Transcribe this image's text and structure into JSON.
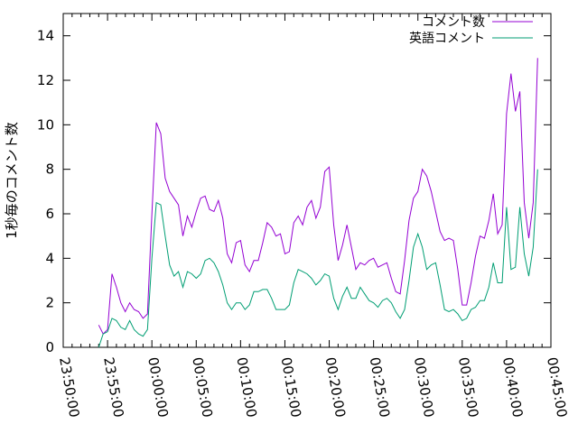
{
  "chart_data": {
    "type": "line",
    "title": "",
    "xlabel": "",
    "ylabel": "1秒毎のコメント数",
    "ylim": [
      0,
      15
    ],
    "xlim": [
      "23:50:00",
      "00:45:00"
    ],
    "yticks": [
      "0",
      "2",
      "4",
      "6",
      "8",
      "10",
      "12",
      "14"
    ],
    "xticks": [
      "23:50:00",
      "23:55:00",
      "00:00:00",
      "00:05:00",
      "00:10:00",
      "00:15:00",
      "00:20:00",
      "00:25:00",
      "00:30:00",
      "00:35:00",
      "00:40:00",
      "00:45:00"
    ],
    "grid": false,
    "legend_position": "top-right",
    "series": [
      {
        "name": "コメント数",
        "color": "#9400d3",
        "points": [
          [
            "23:54:00",
            1.0
          ],
          [
            "23:54:30",
            0.6
          ],
          [
            "23:55:00",
            0.8
          ],
          [
            "23:55:30",
            3.3
          ],
          [
            "23:56:00",
            2.7
          ],
          [
            "23:56:30",
            2.0
          ],
          [
            "23:57:00",
            1.6
          ],
          [
            "23:57:30",
            2.0
          ],
          [
            "23:58:00",
            1.7
          ],
          [
            "23:58:30",
            1.6
          ],
          [
            "23:59:00",
            1.3
          ],
          [
            "23:59:30",
            1.5
          ],
          [
            "00:00:00",
            6.0
          ],
          [
            "00:00:30",
            10.1
          ],
          [
            "00:01:00",
            9.6
          ],
          [
            "00:01:30",
            7.6
          ],
          [
            "00:02:00",
            7.0
          ],
          [
            "00:02:30",
            6.7
          ],
          [
            "00:03:00",
            6.4
          ],
          [
            "00:03:30",
            5.0
          ],
          [
            "00:04:00",
            5.9
          ],
          [
            "00:04:30",
            5.4
          ],
          [
            "00:05:00",
            6.1
          ],
          [
            "00:05:30",
            6.7
          ],
          [
            "00:06:00",
            6.8
          ],
          [
            "00:06:30",
            6.2
          ],
          [
            "00:07:00",
            6.1
          ],
          [
            "00:07:30",
            6.6
          ],
          [
            "00:08:00",
            5.8
          ],
          [
            "00:08:30",
            4.2
          ],
          [
            "00:09:00",
            3.8
          ],
          [
            "00:09:30",
            4.7
          ],
          [
            "00:10:00",
            4.8
          ],
          [
            "00:10:30",
            3.7
          ],
          [
            "00:11:00",
            3.4
          ],
          [
            "00:11:30",
            3.9
          ],
          [
            "00:12:00",
            3.9
          ],
          [
            "00:12:30",
            4.7
          ],
          [
            "00:13:00",
            5.6
          ],
          [
            "00:13:30",
            5.4
          ],
          [
            "00:14:00",
            5.0
          ],
          [
            "00:14:30",
            5.1
          ],
          [
            "00:15:00",
            4.2
          ],
          [
            "00:15:30",
            4.3
          ],
          [
            "00:16:00",
            5.6
          ],
          [
            "00:16:30",
            5.9
          ],
          [
            "00:17:00",
            5.5
          ],
          [
            "00:17:30",
            6.3
          ],
          [
            "00:18:00",
            6.6
          ],
          [
            "00:18:30",
            5.8
          ],
          [
            "00:19:00",
            6.3
          ],
          [
            "00:19:30",
            7.9
          ],
          [
            "00:20:00",
            8.1
          ],
          [
            "00:20:30",
            5.5
          ],
          [
            "00:21:00",
            3.9
          ],
          [
            "00:21:30",
            4.6
          ],
          [
            "00:22:00",
            5.5
          ],
          [
            "00:22:30",
            4.5
          ],
          [
            "00:23:00",
            3.5
          ],
          [
            "00:23:30",
            3.8
          ],
          [
            "00:24:00",
            3.7
          ],
          [
            "00:24:30",
            3.9
          ],
          [
            "00:25:00",
            4.0
          ],
          [
            "00:25:30",
            3.6
          ],
          [
            "00:26:00",
            3.7
          ],
          [
            "00:26:30",
            3.8
          ],
          [
            "00:27:00",
            3.1
          ],
          [
            "00:27:30",
            2.5
          ],
          [
            "00:28:00",
            2.4
          ],
          [
            "00:28:30",
            3.9
          ],
          [
            "00:29:00",
            5.7
          ],
          [
            "00:29:30",
            6.7
          ],
          [
            "00:30:00",
            7.0
          ],
          [
            "00:30:30",
            8.0
          ],
          [
            "00:31:00",
            7.7
          ],
          [
            "00:31:30",
            7.0
          ],
          [
            "00:32:00",
            6.1
          ],
          [
            "00:32:30",
            5.2
          ],
          [
            "00:33:00",
            4.8
          ],
          [
            "00:33:30",
            4.9
          ],
          [
            "00:34:00",
            4.8
          ],
          [
            "00:34:30",
            3.5
          ],
          [
            "00:35:00",
            1.9
          ],
          [
            "00:35:30",
            1.9
          ],
          [
            "00:36:00",
            2.9
          ],
          [
            "00:36:30",
            4.1
          ],
          [
            "00:37:00",
            5.0
          ],
          [
            "00:37:30",
            4.9
          ],
          [
            "00:38:00",
            5.7
          ],
          [
            "00:38:30",
            6.9
          ],
          [
            "00:39:00",
            5.1
          ],
          [
            "00:39:30",
            5.5
          ],
          [
            "00:40:00",
            10.5
          ],
          [
            "00:40:30",
            12.3
          ],
          [
            "00:41:00",
            10.6
          ],
          [
            "00:41:30",
            11.5
          ],
          [
            "00:42:00",
            6.5
          ],
          [
            "00:42:30",
            4.9
          ],
          [
            "00:43:00",
            6.5
          ],
          [
            "00:43:30",
            13.0
          ]
        ]
      },
      {
        "name": "英語コメント",
        "color": "#009e73",
        "points": [
          [
            "23:54:00",
            0.0
          ],
          [
            "23:54:30",
            0.6
          ],
          [
            "23:55:00",
            0.7
          ],
          [
            "23:55:30",
            1.3
          ],
          [
            "23:56:00",
            1.2
          ],
          [
            "23:56:30",
            0.9
          ],
          [
            "23:57:00",
            0.8
          ],
          [
            "23:57:30",
            1.2
          ],
          [
            "23:58:00",
            0.8
          ],
          [
            "23:58:30",
            0.6
          ],
          [
            "23:59:00",
            0.5
          ],
          [
            "23:59:30",
            0.8
          ],
          [
            "00:00:00",
            4.0
          ],
          [
            "00:00:30",
            6.5
          ],
          [
            "00:01:00",
            6.4
          ],
          [
            "00:01:30",
            5.0
          ],
          [
            "00:02:00",
            3.7
          ],
          [
            "00:02:30",
            3.2
          ],
          [
            "00:03:00",
            3.4
          ],
          [
            "00:03:30",
            2.7
          ],
          [
            "00:04:00",
            3.4
          ],
          [
            "00:04:30",
            3.3
          ],
          [
            "00:05:00",
            3.1
          ],
          [
            "00:05:30",
            3.3
          ],
          [
            "00:06:00",
            3.9
          ],
          [
            "00:06:30",
            4.0
          ],
          [
            "00:07:00",
            3.8
          ],
          [
            "00:07:30",
            3.4
          ],
          [
            "00:08:00",
            2.8
          ],
          [
            "00:08:30",
            2.0
          ],
          [
            "00:09:00",
            1.7
          ],
          [
            "00:09:30",
            2.0
          ],
          [
            "00:10:00",
            2.0
          ],
          [
            "00:10:30",
            1.7
          ],
          [
            "00:11:00",
            1.9
          ],
          [
            "00:11:30",
            2.5
          ],
          [
            "00:12:00",
            2.5
          ],
          [
            "00:12:30",
            2.6
          ],
          [
            "00:13:00",
            2.6
          ],
          [
            "00:13:30",
            2.2
          ],
          [
            "00:14:00",
            1.7
          ],
          [
            "00:14:30",
            1.7
          ],
          [
            "00:15:00",
            1.7
          ],
          [
            "00:15:30",
            1.9
          ],
          [
            "00:16:00",
            2.9
          ],
          [
            "00:16:30",
            3.5
          ],
          [
            "00:17:00",
            3.4
          ],
          [
            "00:17:30",
            3.3
          ],
          [
            "00:18:00",
            3.1
          ],
          [
            "00:18:30",
            2.8
          ],
          [
            "00:19:00",
            3.0
          ],
          [
            "00:19:30",
            3.3
          ],
          [
            "00:20:00",
            3.2
          ],
          [
            "00:20:30",
            2.2
          ],
          [
            "00:21:00",
            1.7
          ],
          [
            "00:21:30",
            2.3
          ],
          [
            "00:22:00",
            2.7
          ],
          [
            "00:22:30",
            2.2
          ],
          [
            "00:23:00",
            2.2
          ],
          [
            "00:23:30",
            2.7
          ],
          [
            "00:24:00",
            2.4
          ],
          [
            "00:24:30",
            2.1
          ],
          [
            "00:25:00",
            2.0
          ],
          [
            "00:25:30",
            1.8
          ],
          [
            "00:26:00",
            2.1
          ],
          [
            "00:26:30",
            2.2
          ],
          [
            "00:27:00",
            2.0
          ],
          [
            "00:27:30",
            1.6
          ],
          [
            "00:28:00",
            1.3
          ],
          [
            "00:28:30",
            1.7
          ],
          [
            "00:29:00",
            3.0
          ],
          [
            "00:29:30",
            4.5
          ],
          [
            "00:30:00",
            5.1
          ],
          [
            "00:30:30",
            4.5
          ],
          [
            "00:31:00",
            3.5
          ],
          [
            "00:31:30",
            3.7
          ],
          [
            "00:32:00",
            3.8
          ],
          [
            "00:32:30",
            2.8
          ],
          [
            "00:33:00",
            1.7
          ],
          [
            "00:33:30",
            1.6
          ],
          [
            "00:34:00",
            1.7
          ],
          [
            "00:34:30",
            1.5
          ],
          [
            "00:35:00",
            1.2
          ],
          [
            "00:35:30",
            1.3
          ],
          [
            "00:36:00",
            1.7
          ],
          [
            "00:36:30",
            1.8
          ],
          [
            "00:37:00",
            2.1
          ],
          [
            "00:37:30",
            2.1
          ],
          [
            "00:38:00",
            2.7
          ],
          [
            "00:38:30",
            3.8
          ],
          [
            "00:39:00",
            2.9
          ],
          [
            "00:39:30",
            2.9
          ],
          [
            "00:40:00",
            6.3
          ],
          [
            "00:40:30",
            3.5
          ],
          [
            "00:41:00",
            3.6
          ],
          [
            "00:41:30",
            6.3
          ],
          [
            "00:42:00",
            4.2
          ],
          [
            "00:42:30",
            3.2
          ],
          [
            "00:43:00",
            4.5
          ],
          [
            "00:43:30",
            8.0
          ]
        ]
      }
    ]
  }
}
